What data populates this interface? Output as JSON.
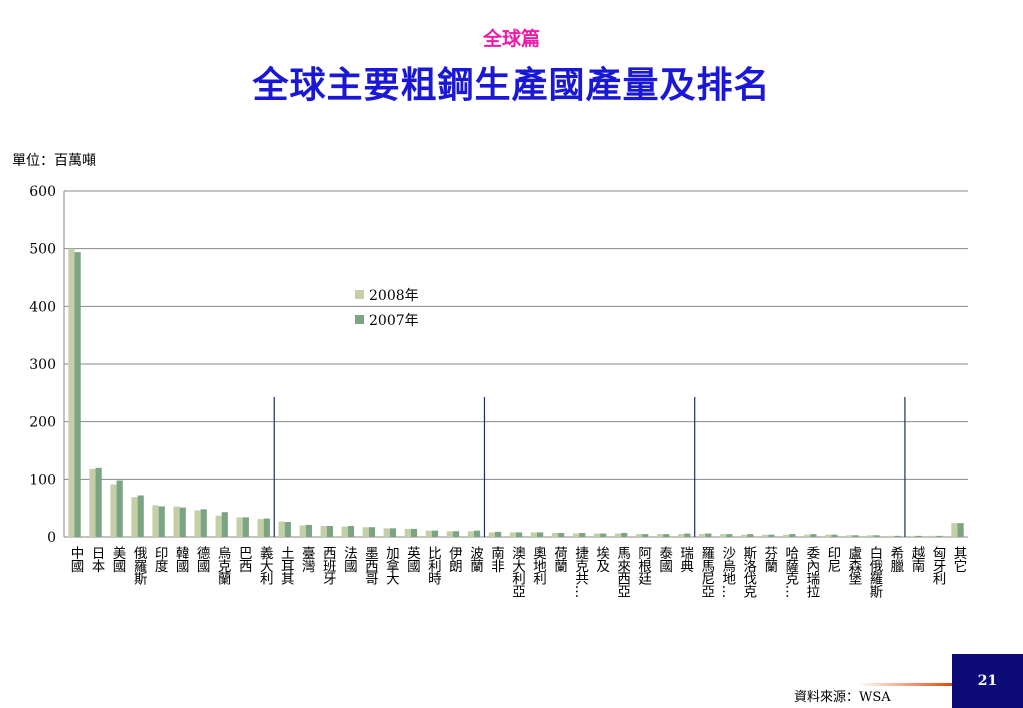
{
  "header": {
    "subtitle": "全球篇",
    "title": "全球主要粗鋼生產國產量及排名"
  },
  "unit_label": "單位：百萬噸",
  "footer": {
    "source": "資料來源：WSA",
    "page_number": "21"
  },
  "colors": {
    "series_2008": "#c4cfa8",
    "series_2007": "#7aa482",
    "divider": "#1f2d5c",
    "title": "#1a18d6",
    "subtitle": "#ee1aa8"
  },
  "chart_data": {
    "type": "bar",
    "ylim": [
      0,
      600
    ],
    "yticks": [
      0,
      100,
      200,
      300,
      400,
      500,
      600
    ],
    "grid": true,
    "legend_position": "center-left",
    "categories": [
      "中國",
      "日本",
      "美國",
      "俄羅斯",
      "印度",
      "韓國",
      "德國",
      "烏克蘭",
      "巴西",
      "義大利",
      "土耳其",
      "臺灣",
      "西班牙",
      "法國",
      "墨西哥",
      "加拿大",
      "英國",
      "比利時",
      "伊朗",
      "波蘭",
      "南非",
      "澳大利亞",
      "奧地利",
      "荷蘭",
      "捷克共…",
      "埃及",
      "馬來西亞",
      "阿根廷",
      "泰國",
      "瑞典",
      "羅馬尼亞",
      "沙烏地…",
      "斯洛伐克",
      "芬蘭",
      "哈薩克…",
      "委內瑞拉",
      "印尼",
      "盧森堡",
      "白俄羅斯",
      "希臘",
      "越南",
      "匈牙利",
      "其它"
    ],
    "series": [
      {
        "name": "2008年",
        "values": [
          500,
          118,
          91,
          69,
          55,
          53,
          46,
          37,
          34,
          31,
          27,
          20,
          19,
          18,
          17,
          15,
          14,
          11,
          10,
          10,
          8,
          8,
          8,
          7,
          6,
          6,
          6,
          5,
          5,
          5,
          5,
          5,
          4,
          4,
          4,
          4,
          4,
          3,
          3,
          2,
          2,
          2,
          24
        ]
      },
      {
        "name": "2007年",
        "values": [
          494,
          120,
          98,
          72,
          53,
          51,
          48,
          43,
          34,
          32,
          26,
          21,
          19,
          19,
          17,
          15,
          14,
          11,
          10,
          11,
          9,
          8,
          8,
          7,
          7,
          6,
          7,
          5,
          5,
          6,
          6,
          5,
          5,
          4,
          5,
          5,
          4,
          3,
          3,
          2,
          2,
          2,
          24
        ]
      }
    ],
    "dividers_after_index": [
      9,
      19,
      29,
      39
    ]
  }
}
